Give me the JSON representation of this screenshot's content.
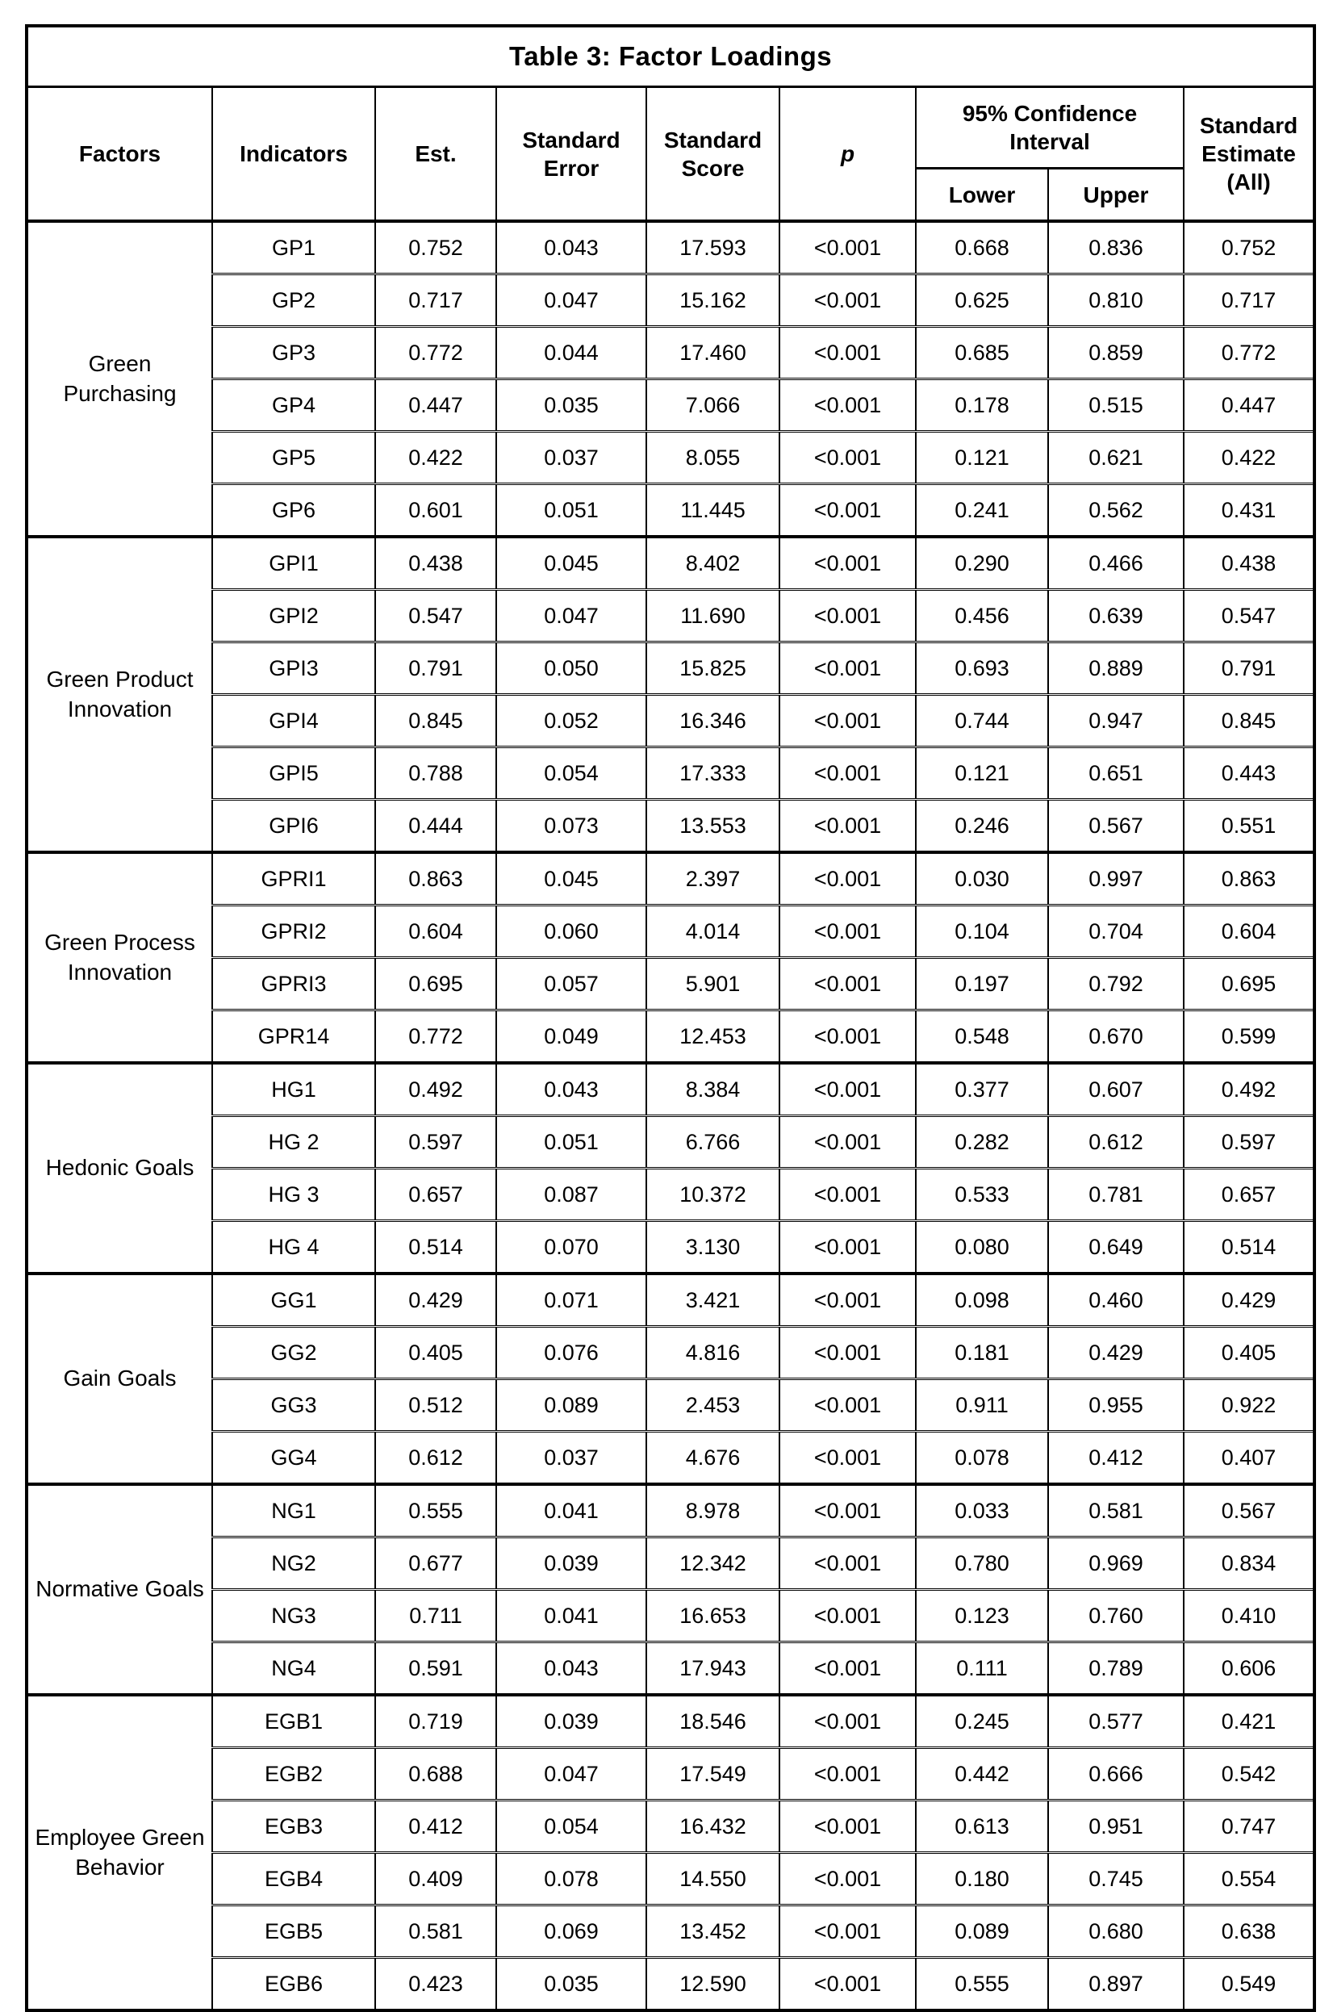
{
  "table": {
    "title": "Table 3: Factor Loadings",
    "columns": {
      "factors": "Factors",
      "indicators": "Indicators",
      "est": "Est.",
      "std_error": "Standard Error",
      "std_score": "Standard Score",
      "p": "p",
      "ci": "95% Confidence Interval",
      "ci_lower": "Lower",
      "ci_upper": "Upper",
      "std_estimate": "Standard Estimate (All)"
    },
    "groups": [
      {
        "factor": "Green Purchasing",
        "rows": [
          {
            "indicator": "GP1",
            "est": "0.752",
            "se": "0.043",
            "score": "17.593",
            "p": "<0.001",
            "lower": "0.668",
            "upper": "0.836",
            "std_all": "0.752"
          },
          {
            "indicator": "GP2",
            "est": "0.717",
            "se": "0.047",
            "score": "15.162",
            "p": "<0.001",
            "lower": "0.625",
            "upper": "0.810",
            "std_all": "0.717"
          },
          {
            "indicator": "GP3",
            "est": "0.772",
            "se": "0.044",
            "score": "17.460",
            "p": "<0.001",
            "lower": "0.685",
            "upper": "0.859",
            "std_all": "0.772"
          },
          {
            "indicator": "GP4",
            "est": "0.447",
            "se": "0.035",
            "score": "7.066",
            "p": "<0.001",
            "lower": "0.178",
            "upper": "0.515",
            "std_all": "0.447"
          },
          {
            "indicator": "GP5",
            "est": "0.422",
            "se": "0.037",
            "score": "8.055",
            "p": "<0.001",
            "lower": "0.121",
            "upper": "0.621",
            "std_all": "0.422"
          },
          {
            "indicator": "GP6",
            "est": "0.601",
            "se": "0.051",
            "score": "11.445",
            "p": "<0.001",
            "lower": "0.241",
            "upper": "0.562",
            "std_all": "0.431"
          }
        ]
      },
      {
        "factor": "Green Product Innovation",
        "rows": [
          {
            "indicator": "GPI1",
            "est": "0.438",
            "se": "0.045",
            "score": "8.402",
            "p": "<0.001",
            "lower": "0.290",
            "upper": "0.466",
            "std_all": "0.438"
          },
          {
            "indicator": "GPI2",
            "est": "0.547",
            "se": "0.047",
            "score": "11.690",
            "p": "<0.001",
            "lower": "0.456",
            "upper": "0.639",
            "std_all": "0.547"
          },
          {
            "indicator": "GPI3",
            "est": "0.791",
            "se": "0.050",
            "score": "15.825",
            "p": "<0.001",
            "lower": "0.693",
            "upper": "0.889",
            "std_all": "0.791"
          },
          {
            "indicator": "GPI4",
            "est": "0.845",
            "se": "0.052",
            "score": "16.346",
            "p": "<0.001",
            "lower": "0.744",
            "upper": "0.947",
            "std_all": "0.845"
          },
          {
            "indicator": "GPI5",
            "est": "0.788",
            "se": "0.054",
            "score": "17.333",
            "p": "<0.001",
            "lower": "0.121",
            "upper": "0.651",
            "std_all": "0.443"
          },
          {
            "indicator": "GPI6",
            "est": "0.444",
            "se": "0.073",
            "score": "13.553",
            "p": "<0.001",
            "lower": "0.246",
            "upper": "0.567",
            "std_all": "0.551"
          }
        ]
      },
      {
        "factor": "Green Process Innovation",
        "rows": [
          {
            "indicator": "GPRI1",
            "est": "0.863",
            "se": "0.045",
            "score": "2.397",
            "p": "<0.001",
            "lower": "0.030",
            "upper": "0.997",
            "std_all": "0.863"
          },
          {
            "indicator": "GPRI2",
            "est": "0.604",
            "se": "0.060",
            "score": "4.014",
            "p": "<0.001",
            "lower": "0.104",
            "upper": "0.704",
            "std_all": "0.604"
          },
          {
            "indicator": "GPRI3",
            "est": "0.695",
            "se": "0.057",
            "score": "5.901",
            "p": "<0.001",
            "lower": "0.197",
            "upper": "0.792",
            "std_all": "0.695"
          },
          {
            "indicator": "GPR14",
            "est": "0.772",
            "se": "0.049",
            "score": "12.453",
            "p": "<0.001",
            "lower": "0.548",
            "upper": "0.670",
            "std_all": "0.599"
          }
        ]
      },
      {
        "factor": "Hedonic Goals",
        "rows": [
          {
            "indicator": "HG1",
            "est": "0.492",
            "se": "0.043",
            "score": "8.384",
            "p": "<0.001",
            "lower": "0.377",
            "upper": "0.607",
            "std_all": "0.492"
          },
          {
            "indicator": "HG 2",
            "est": "0.597",
            "se": "0.051",
            "score": "6.766",
            "p": "<0.001",
            "lower": "0.282",
            "upper": "0.612",
            "std_all": "0.597"
          },
          {
            "indicator": "HG 3",
            "est": "0.657",
            "se": "0.087",
            "score": "10.372",
            "p": "<0.001",
            "lower": "0.533",
            "upper": "0.781",
            "std_all": "0.657"
          },
          {
            "indicator": "HG 4",
            "est": "0.514",
            "se": "0.070",
            "score": "3.130",
            "p": "<0.001",
            "lower": "0.080",
            "upper": "0.649",
            "std_all": "0.514"
          }
        ]
      },
      {
        "factor": "Gain Goals",
        "rows": [
          {
            "indicator": "GG1",
            "est": "0.429",
            "se": "0.071",
            "score": "3.421",
            "p": "<0.001",
            "lower": "0.098",
            "upper": "0.460",
            "std_all": "0.429"
          },
          {
            "indicator": "GG2",
            "est": "0.405",
            "se": "0.076",
            "score": "4.816",
            "p": "<0.001",
            "lower": "0.181",
            "upper": "0.429",
            "std_all": "0.405"
          },
          {
            "indicator": "GG3",
            "est": "0.512",
            "se": "0.089",
            "score": "2.453",
            "p": "<0.001",
            "lower": "0.911",
            "upper": "0.955",
            "std_all": "0.922"
          },
          {
            "indicator": "GG4",
            "est": "0.612",
            "se": "0.037",
            "score": "4.676",
            "p": "<0.001",
            "lower": "0.078",
            "upper": "0.412",
            "std_all": "0.407"
          }
        ]
      },
      {
        "factor": "Normative Goals",
        "rows": [
          {
            "indicator": "NG1",
            "est": "0.555",
            "se": "0.041",
            "score": "8.978",
            "p": "<0.001",
            "lower": "0.033",
            "upper": "0.581",
            "std_all": "0.567"
          },
          {
            "indicator": "NG2",
            "est": "0.677",
            "se": "0.039",
            "score": "12.342",
            "p": "<0.001",
            "lower": "0.780",
            "upper": "0.969",
            "std_all": "0.834"
          },
          {
            "indicator": "NG3",
            "est": "0.711",
            "se": "0.041",
            "score": "16.653",
            "p": "<0.001",
            "lower": "0.123",
            "upper": "0.760",
            "std_all": "0.410"
          },
          {
            "indicator": "NG4",
            "est": "0.591",
            "se": "0.043",
            "score": "17.943",
            "p": "<0.001",
            "lower": "0.111",
            "upper": "0.789",
            "std_all": "0.606"
          }
        ]
      },
      {
        "factor": "Employee Green Behavior",
        "rows": [
          {
            "indicator": "EGB1",
            "est": "0.719",
            "se": "0.039",
            "score": "18.546",
            "p": "<0.001",
            "lower": "0.245",
            "upper": "0.577",
            "std_all": "0.421"
          },
          {
            "indicator": "EGB2",
            "est": "0.688",
            "se": "0.047",
            "score": "17.549",
            "p": "<0.001",
            "lower": "0.442",
            "upper": "0.666",
            "std_all": "0.542"
          },
          {
            "indicator": "EGB3",
            "est": "0.412",
            "se": "0.054",
            "score": "16.432",
            "p": "<0.001",
            "lower": "0.613",
            "upper": "0.951",
            "std_all": "0.747"
          },
          {
            "indicator": "EGB4",
            "est": "0.409",
            "se": "0.078",
            "score": "14.550",
            "p": "<0.001",
            "lower": "0.180",
            "upper": "0.745",
            "std_all": "0.554"
          },
          {
            "indicator": "EGB5",
            "est": "0.581",
            "se": "0.069",
            "score": "13.452",
            "p": "<0.001",
            "lower": "0.089",
            "upper": "0.680",
            "std_all": "0.638"
          },
          {
            "indicator": "EGB6",
            "est": "0.423",
            "se": "0.035",
            "score": "12.590",
            "p": "<0.001",
            "lower": "0.555",
            "upper": "0.897",
            "std_all": "0.549"
          }
        ]
      }
    ]
  }
}
